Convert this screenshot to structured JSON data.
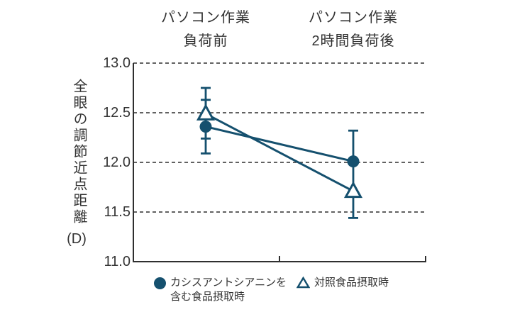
{
  "colors": {
    "accent": "#15506e",
    "axis": "#2f2f2f",
    "text": "#333333"
  },
  "chart_data": {
    "type": "line",
    "categories": [
      [
        "パソコン作業",
        "負荷前"
      ],
      [
        "パソコン作業",
        "2時間負荷後"
      ]
    ],
    "series": [
      {
        "name": "カシスアントシアニンを含む食品摂取時",
        "marker": "filled-circle",
        "values": [
          12.36,
          12.01
        ]
      },
      {
        "name": "対照食品摂取時",
        "marker": "open-triangle",
        "values": [
          12.49,
          11.71
        ]
      }
    ],
    "error_bars": [
      {
        "category_index": 0,
        "top": 12.75,
        "bottom": 12.24
      },
      {
        "category_index": 0,
        "top": 12.63,
        "bottom": 12.09
      },
      {
        "category_index": 1,
        "top": 12.32,
        "bottom": 11.44
      }
    ],
    "ylabel": "全眼の調節近点距離(D)",
    "ylabel_main": "全眼の調節近点距離",
    "ylabel_unit": "(D)",
    "yticks": [
      13.0,
      12.5,
      12.0,
      11.5,
      11.0
    ],
    "ytick_labels": [
      "13.0",
      "12.5",
      "12.0",
      "11.5",
      "11.0"
    ],
    "ylim": [
      11.0,
      13.0
    ],
    "xlabel": "",
    "title": "",
    "grid": "dashed-horizontal",
    "legend_position": "bottom"
  },
  "legend": {
    "items": [
      {
        "marker": "filled-circle",
        "lines": [
          "カシスアントシアニンを",
          "含む食品摂取時"
        ]
      },
      {
        "marker": "open-triangle",
        "lines": [
          "対照食品摂取時"
        ]
      }
    ]
  }
}
